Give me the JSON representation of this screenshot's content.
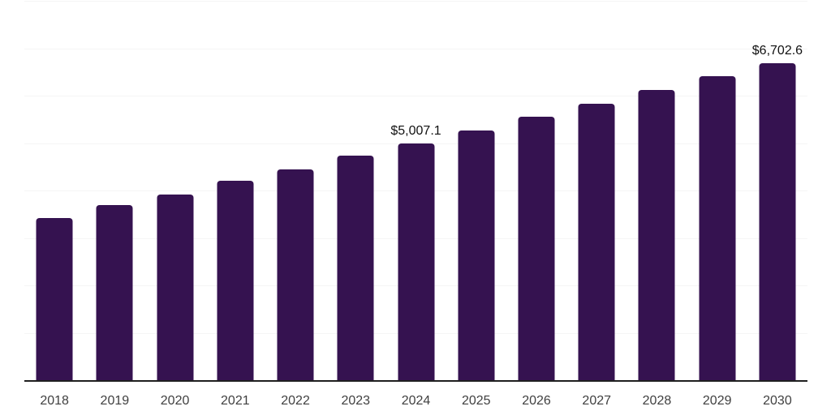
{
  "chart_data": {
    "type": "bar",
    "title": "",
    "xlabel": "",
    "ylabel": "",
    "categories": [
      "2018",
      "2019",
      "2020",
      "2021",
      "2022",
      "2023",
      "2024",
      "2025",
      "2026",
      "2027",
      "2028",
      "2029",
      "2030"
    ],
    "values": [
      3430,
      3705,
      3940,
      4230,
      4465,
      4755,
      5007.1,
      5280,
      5565,
      5845,
      6135,
      6435,
      6702.6
    ],
    "data_labels": [
      "",
      "",
      "",
      "",
      "",
      "",
      "$5,007.1",
      "",
      "",
      "",
      "",
      "",
      "$6,702.6"
    ],
    "ylim": [
      0,
      8000
    ],
    "gridline_step": 1000,
    "grid": true,
    "y_axis_labels_visible": false,
    "legend_position": "none",
    "colors": {
      "bar": "#351250",
      "axis_line": "#1f1f1f",
      "gridline": "#f5f5f5",
      "tick_label": "#3f3f3f",
      "data_label": "#111111",
      "background": "#ffffff"
    }
  }
}
